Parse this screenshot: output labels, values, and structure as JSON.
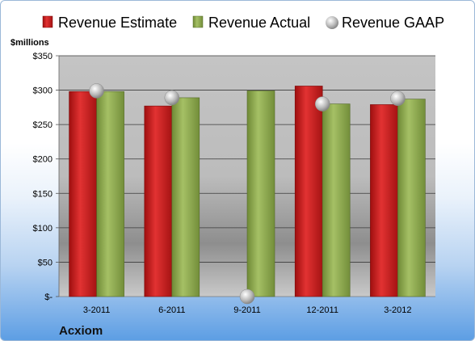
{
  "chart_data": {
    "type": "bar",
    "title": "",
    "unit_label": "$millions",
    "company": "Acxiom",
    "xlabel": "",
    "ylabel": "",
    "categories": [
      "3-2011",
      "6-2011",
      "9-2011",
      "12-2011",
      "3-2012"
    ],
    "series": [
      {
        "name": "Revenue Estimate",
        "kind": "bar",
        "color": "#c81e1e",
        "values": [
          298,
          277,
          null,
          306,
          279
        ]
      },
      {
        "name": "Revenue Actual",
        "kind": "bar",
        "color": "#8aa64a",
        "values": [
          298,
          289,
          299,
          280,
          287
        ]
      },
      {
        "name": "Revenue GAAP",
        "kind": "marker",
        "color": "#b0b0b0",
        "values": [
          299,
          289,
          0,
          280,
          288
        ]
      }
    ],
    "ylim": [
      0,
      350
    ],
    "yticks": [
      0,
      50,
      100,
      150,
      200,
      250,
      300,
      350
    ],
    "ytick_labels": [
      "$-",
      "$50",
      "$100",
      "$150",
      "$200",
      "$250",
      "$300",
      "$350"
    ],
    "grid": true,
    "legend": "top"
  }
}
